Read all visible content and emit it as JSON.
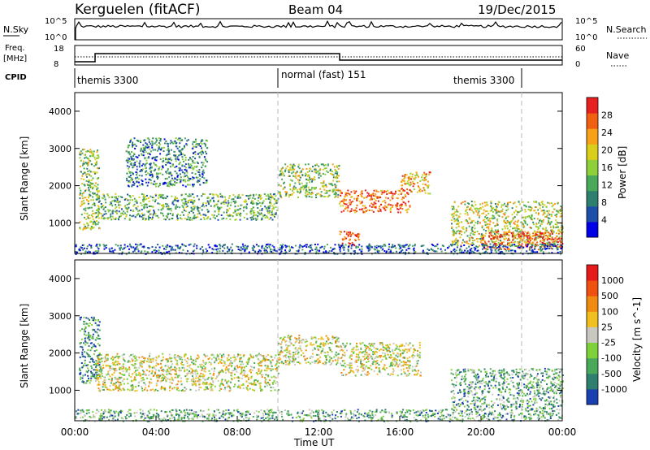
{
  "header": {
    "station": "Kerguelen (fitACF)",
    "beam": "Beam 04",
    "date": "19/Dec/2015"
  },
  "top_panels": {
    "nsky_label": "N.Sky",
    "nsky_ticks": [
      "10^5",
      "10^0"
    ],
    "nsearch_label": "N.Search",
    "nsearch_ticks": [
      "10^5",
      "10^0"
    ],
    "freq_label": "Freq.",
    "freq_unit": "[MHz]",
    "freq_ticks": [
      "18",
      "8"
    ],
    "nave_label": "Nave",
    "nave_ticks": [
      "60",
      "0"
    ],
    "cpid_label": "CPID",
    "cpid_segments": [
      "themis 3300",
      "normal (fast) 151",
      "themis 3300"
    ]
  },
  "chart_data": [
    {
      "type": "heatmap",
      "panel": "power",
      "ylabel": "Slant Range [km]",
      "yticks": [
        "4000",
        "3000",
        "2000",
        "1000"
      ],
      "ylim": [
        180,
        4500
      ],
      "xlim": [
        0,
        24
      ],
      "colorbar_label": "Power [dB]",
      "colorbar_ticks": [
        "28",
        "24",
        "20",
        "16",
        "12",
        "8",
        "4"
      ],
      "colors": [
        "#0000e6",
        "#1e4fa8",
        "#2e7f6e",
        "#4aa85a",
        "#8fcf3a",
        "#d9cf1a",
        "#f7a01a",
        "#f06010",
        "#e62020"
      ],
      "scatter_regions": [
        {
          "t0": 0.2,
          "t1": 1.2,
          "r0": 800,
          "r1": 3000,
          "level": 0.5
        },
        {
          "t0": 1.0,
          "t1": 10.0,
          "r0": 1100,
          "r1": 1800,
          "level": 0.4
        },
        {
          "t0": 2.5,
          "t1": 6.5,
          "r0": 2000,
          "r1": 3300,
          "level": 0.3
        },
        {
          "t0": 10.0,
          "t1": 13.0,
          "r0": 1700,
          "r1": 2600,
          "level": 0.5
        },
        {
          "t0": 13.0,
          "t1": 16.5,
          "r0": 1300,
          "r1": 1900,
          "level": 0.85
        },
        {
          "t0": 16.0,
          "t1": 17.5,
          "r0": 1800,
          "r1": 2400,
          "level": 0.7
        },
        {
          "t0": 13.0,
          "t1": 14.0,
          "r0": 400,
          "r1": 800,
          "level": 0.9
        },
        {
          "t0": 18.5,
          "t1": 24.0,
          "r0": 400,
          "r1": 1600,
          "level": 0.55
        },
        {
          "t0": 20.0,
          "t1": 24.0,
          "r0": 300,
          "r1": 800,
          "level": 0.9
        },
        {
          "t0": 0.0,
          "t1": 24.0,
          "r0": 180,
          "r1": 450,
          "level": 0.2
        }
      ]
    },
    {
      "type": "heatmap",
      "panel": "velocity",
      "ylabel": "Slant Range [km]",
      "yticks": [
        "4000",
        "3000",
        "2000",
        "1000"
      ],
      "ylim": [
        180,
        4500
      ],
      "xlim": [
        0,
        24
      ],
      "xticks": [
        "00:00",
        "04:00",
        "08:00",
        "12:00",
        "16:00",
        "20:00",
        "00:00"
      ],
      "xlabel": "Time UT",
      "colorbar_label": "Velocity [m s^-1]",
      "colorbar_ticks": [
        "1000",
        "500",
        "100",
        "25",
        "-25",
        "-100",
        "-500",
        "-1000"
      ],
      "colors": [
        "#1a3fb0",
        "#2e7f6e",
        "#4aa85a",
        "#7fd13a",
        "#c8c8c0",
        "#f0c020",
        "#f08a10",
        "#f05010",
        "#e61a1a"
      ],
      "scatter_regions": [
        {
          "t0": 0.2,
          "t1": 1.2,
          "r0": 1200,
          "r1": 3000,
          "level": 0.2
        },
        {
          "t0": 1.0,
          "t1": 10.0,
          "r0": 1000,
          "r1": 2000,
          "level": 0.5
        },
        {
          "t0": 10.0,
          "t1": 13.0,
          "r0": 1700,
          "r1": 2500,
          "level": 0.5
        },
        {
          "t0": 13.0,
          "t1": 17.0,
          "r0": 1400,
          "r1": 2300,
          "level": 0.5
        },
        {
          "t0": 18.5,
          "t1": 24.0,
          "r0": 500,
          "r1": 1600,
          "level": 0.3
        },
        {
          "t0": 0.0,
          "t1": 24.0,
          "r0": 180,
          "r1": 500,
          "level": 0.3
        }
      ]
    }
  ]
}
